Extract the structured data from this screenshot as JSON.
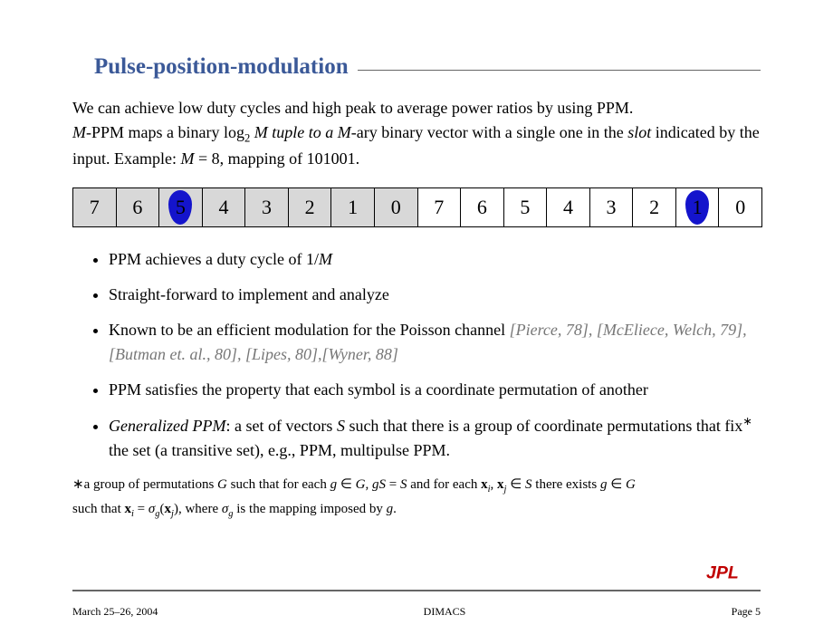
{
  "title": "Pulse-position-modulation",
  "para_parts": {
    "p1a": "We can achieve low duty cycles and high peak to average power ratios by using PPM.",
    "p1b_a": "M",
    "p1b_b": "-PPM maps a binary log",
    "p1b_sub": "2",
    "p1b_c": " M tuple to a ",
    "p1b_d": "M",
    "p1b_e": "-ary binary vector with a single one in the ",
    "p1b_slot": "slot",
    "p1b_f": " indicated by the input. Example: ",
    "p1b_g": "M",
    "p1b_h": " = 8, mapping of 101001."
  },
  "slots": [
    {
      "label": "7",
      "shaded": true,
      "pulse": false
    },
    {
      "label": "6",
      "shaded": true,
      "pulse": false
    },
    {
      "label": "5",
      "shaded": true,
      "pulse": true
    },
    {
      "label": "4",
      "shaded": true,
      "pulse": false
    },
    {
      "label": "3",
      "shaded": true,
      "pulse": false
    },
    {
      "label": "2",
      "shaded": true,
      "pulse": false
    },
    {
      "label": "1",
      "shaded": true,
      "pulse": false
    },
    {
      "label": "0",
      "shaded": true,
      "pulse": false
    },
    {
      "label": "7",
      "shaded": false,
      "pulse": false
    },
    {
      "label": "6",
      "shaded": false,
      "pulse": false
    },
    {
      "label": "5",
      "shaded": false,
      "pulse": false
    },
    {
      "label": "4",
      "shaded": false,
      "pulse": false
    },
    {
      "label": "3",
      "shaded": false,
      "pulse": false
    },
    {
      "label": "2",
      "shaded": false,
      "pulse": false
    },
    {
      "label": "1",
      "shaded": false,
      "pulse": true
    },
    {
      "label": "0",
      "shaded": false,
      "pulse": false
    }
  ],
  "bullets": {
    "b1_a": "PPM achieves a duty cycle of 1/",
    "b1_b": "M",
    "b2": "Straight-forward to implement and analyze",
    "b3_a": "Known to be an efficient modulation for the Poisson channel ",
    "b3_ref": "[Pierce, 78], [McEliece, Welch, 79], [Butman et. al., 80], [Lipes, 80],[Wyner, 88]",
    "b4": "PPM satisfies the property that each symbol is a coordinate permutation of another",
    "b5_a": "Generalized PPM",
    "b5_b": ": a set of vectors ",
    "b5_c": "S",
    "b5_d": " such that there is a group of coordinate permu",
    "b5_e": "tations that fix",
    "b5_star": "∗",
    "b5_f": " the set (a transitive set), e.g., PPM, multipulse PPM."
  },
  "footnote": {
    "star": "∗",
    "a": "a group of permutations ",
    "G": "G",
    "b": " such that for each ",
    "g": "g",
    "c": " ∈ ",
    "d": ", ",
    "gS": "gS",
    "eq": " = ",
    "S": "S",
    "e": " and for each ",
    "x": "x",
    "i": "i",
    "comma": ", ",
    "j": "j",
    "f": " ∈ ",
    "h": " there exists ",
    "k": " such that ",
    "eq2": " = ",
    "sigma": "σ",
    "l": "(",
    "m": "), where ",
    "n": " is the mapping imposed by ",
    "o": "."
  },
  "footer": {
    "left": "March 25–26, 2004",
    "center": "DIMACS",
    "right": "Page 5"
  },
  "colors": {
    "title": "#3b5998",
    "pulse": "#1414cc",
    "shaded": "#d8d8d8",
    "rule": "#666666",
    "ref": "#777777",
    "jpl": "#c00000"
  }
}
